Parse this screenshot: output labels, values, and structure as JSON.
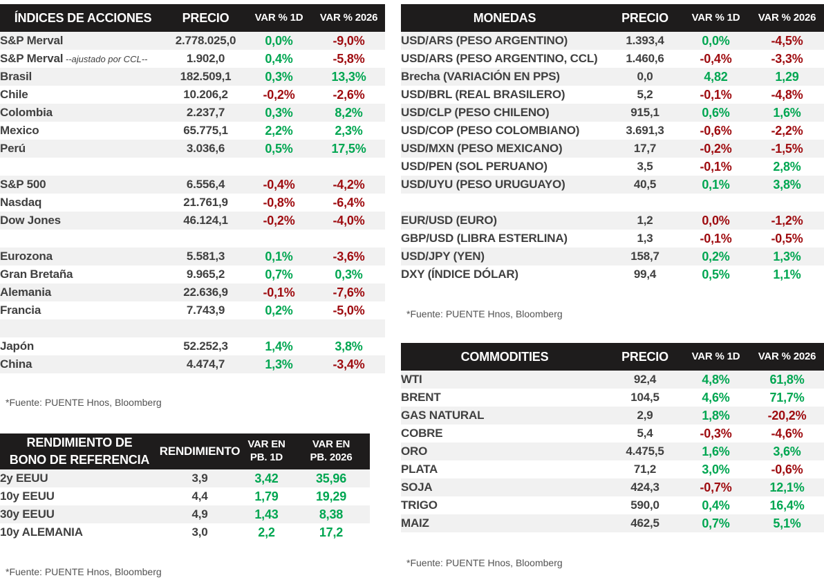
{
  "colors": {
    "positive_green": "#00A651",
    "negative_red": "#9E0B0F",
    "header_background": "#1E1C1C",
    "row_stripe": "#F1F1F1",
    "body_text": "#404040"
  },
  "chart_data": [
    {
      "type": "table",
      "title": "ÍNDICES DE ACCIONES",
      "columns": [
        "PRECIO",
        "VAR % 1D",
        "VAR % 2026"
      ],
      "rows": [
        {
          "label": "S&P Merval",
          "value": "2.778.025,0",
          "var_1d": "0,0%",
          "var_1d_color": "green",
          "var_2026": "-9,0%",
          "var_2026_color": "red"
        },
        {
          "label": "S&P Merval",
          "note": "--ajustado por CCL--",
          "value": "1.902,0",
          "var_1d": "0,4%",
          "var_1d_color": "green",
          "var_2026": "-5,8%",
          "var_2026_color": "red"
        },
        {
          "label": "Brasil",
          "value": "182.509,1",
          "var_1d": "0,3%",
          "var_1d_color": "green",
          "var_2026": "13,3%",
          "var_2026_color": "green"
        },
        {
          "label": "Chile",
          "value": "10.206,2",
          "var_1d": "-0,2%",
          "var_1d_color": "red",
          "var_2026": "-2,6%",
          "var_2026_color": "red"
        },
        {
          "label": "Colombia",
          "value": "2.237,7",
          "var_1d": "0,3%",
          "var_1d_color": "green",
          "var_2026": "8,2%",
          "var_2026_color": "green"
        },
        {
          "label": "Mexico",
          "value": "65.775,1",
          "var_1d": "2,2%",
          "var_1d_color": "green",
          "var_2026": "2,3%",
          "var_2026_color": "green"
        },
        {
          "label": "Perú",
          "value": "3.036,6",
          "var_1d": "0,5%",
          "var_1d_color": "green",
          "var_2026": "17,5%",
          "var_2026_color": "green"
        },
        {
          "empty": true
        },
        {
          "label": "S&P 500",
          "value": "6.556,4",
          "var_1d": "-0,4%",
          "var_1d_color": "red",
          "var_2026": "-4,2%",
          "var_2026_color": "red"
        },
        {
          "label": "Nasdaq",
          "value": "21.761,9",
          "var_1d": "-0,8%",
          "var_1d_color": "red",
          "var_2026": "-6,4%",
          "var_2026_color": "red"
        },
        {
          "label": "Dow Jones",
          "value": "46.124,1",
          "var_1d": "-0,2%",
          "var_1d_color": "red",
          "var_2026": "-4,0%",
          "var_2026_color": "red"
        },
        {
          "empty": true
        },
        {
          "label": "Eurozona",
          "value": "5.581,3",
          "var_1d": "0,1%",
          "var_1d_color": "green",
          "var_2026": "-3,6%",
          "var_2026_color": "red"
        },
        {
          "label": "Gran Bretaña",
          "value": "9.965,2",
          "var_1d": "0,7%",
          "var_1d_color": "green",
          "var_2026": "0,3%",
          "var_2026_color": "green"
        },
        {
          "label": "Alemania",
          "value": "22.636,9",
          "var_1d": "-0,1%",
          "var_1d_color": "red",
          "var_2026": "-7,6%",
          "var_2026_color": "red"
        },
        {
          "label": "Francia",
          "value": "7.743,9",
          "var_1d": "0,2%",
          "var_1d_color": "green",
          "var_2026": "-5,0%",
          "var_2026_color": "red"
        },
        {
          "empty": true
        },
        {
          "label": "Japón",
          "value": "52.252,3",
          "var_1d": "1,4%",
          "var_1d_color": "green",
          "var_2026": "3,8%",
          "var_2026_color": "green"
        },
        {
          "label": "China",
          "value": "4.474,7",
          "var_1d": "1,3%",
          "var_1d_color": "green",
          "var_2026": "-3,4%",
          "var_2026_color": "red"
        }
      ],
      "source": "*Fuente: PUENTE Hnos, Bloomberg"
    },
    {
      "type": "table",
      "title": "RENDIMIENTO DE\nBONO DE REFERENCIA",
      "columns": [
        "RENDIMIENTO",
        "VAR EN\nPB. 1D",
        "VAR EN\nPB. 2026"
      ],
      "rows": [
        {
          "label": "2y EEUU",
          "value": "3,9",
          "var_1d": "3,42",
          "var_1d_color": "green",
          "var_2026": "35,96",
          "var_2026_color": "green"
        },
        {
          "label": "10y EEUU",
          "value": "4,4",
          "var_1d": "1,79",
          "var_1d_color": "green",
          "var_2026": "19,29",
          "var_2026_color": "green"
        },
        {
          "label": "30y EEUU",
          "value": "4,9",
          "var_1d": "1,43",
          "var_1d_color": "green",
          "var_2026": "8,38",
          "var_2026_color": "green"
        },
        {
          "label": "10y ALEMANIA",
          "value": "3,0",
          "var_1d": "2,2",
          "var_1d_color": "green",
          "var_2026": "17,2",
          "var_2026_color": "green"
        }
      ],
      "source": "*Fuente: PUENTE Hnos, Bloomberg"
    },
    {
      "type": "table",
      "title": "MONEDAS",
      "columns": [
        "PRECIO",
        "VAR % 1D",
        "VAR % 2026"
      ],
      "rows": [
        {
          "label": "USD/ARS (PESO ARGENTINO)",
          "value": "1.393,4",
          "var_1d": "0,0%",
          "var_1d_color": "green",
          "var_2026": "-4,5%",
          "var_2026_color": "red"
        },
        {
          "label": "USD/ARS (PESO ARGENTINO, CCL)",
          "value": "1.460,6",
          "var_1d": "-0,4%",
          "var_1d_color": "red",
          "var_2026": "-3,3%",
          "var_2026_color": "red"
        },
        {
          "label": "Brecha (VARIACIÓN EN PPS)",
          "value": "0,0",
          "var_1d": "4,82",
          "var_1d_color": "green",
          "var_2026": "1,29",
          "var_2026_color": "green"
        },
        {
          "label": "USD/BRL (REAL BRASILERO)",
          "value": "5,2",
          "var_1d": "-0,1%",
          "var_1d_color": "red",
          "var_2026": "-4,8%",
          "var_2026_color": "red"
        },
        {
          "label": "USD/CLP (PESO CHILENO)",
          "value": "915,1",
          "var_1d": "0,6%",
          "var_1d_color": "green",
          "var_2026": "1,6%",
          "var_2026_color": "green"
        },
        {
          "label": "USD/COP (PESO COLOMBIANO)",
          "value": "3.691,3",
          "var_1d": "-0,6%",
          "var_1d_color": "red",
          "var_2026": "-2,2%",
          "var_2026_color": "red"
        },
        {
          "label": "USD/MXN (PESO MEXICANO)",
          "value": "17,7",
          "var_1d": "-0,2%",
          "var_1d_color": "red",
          "var_2026": "-1,5%",
          "var_2026_color": "red"
        },
        {
          "label": "USD/PEN (SOL PERUANO)",
          "value": "3,5",
          "var_1d": "-0,1%",
          "var_1d_color": "red",
          "var_2026": "2,8%",
          "var_2026_color": "green"
        },
        {
          "label": "USD/UYU (PESO URUGUAYO)",
          "value": "40,5",
          "var_1d": "0,1%",
          "var_1d_color": "green",
          "var_2026": "3,8%",
          "var_2026_color": "green"
        },
        {
          "empty": true
        },
        {
          "label": "EUR/USD (EURO)",
          "value": "1,2",
          "var_1d": "0,0%",
          "var_1d_color": "red",
          "var_2026": "-1,2%",
          "var_2026_color": "red"
        },
        {
          "label": "GBP/USD (LIBRA ESTERLINA)",
          "value": "1,3",
          "var_1d": "-0,1%",
          "var_1d_color": "red",
          "var_2026": "-0,5%",
          "var_2026_color": "red"
        },
        {
          "label": "USD/JPY (YEN)",
          "value": "158,7",
          "var_1d": "0,2%",
          "var_1d_color": "green",
          "var_2026": "1,3%",
          "var_2026_color": "green"
        },
        {
          "label": "DXY (ÍNDICE DÓLAR)",
          "value": "99,4",
          "var_1d": "0,5%",
          "var_1d_color": "green",
          "var_2026": "1,1%",
          "var_2026_color": "green"
        }
      ],
      "source": "*Fuente: PUENTE Hnos, Bloomberg"
    },
    {
      "type": "table",
      "title": "COMMODITIES",
      "columns": [
        "PRECIO",
        "VAR % 1D",
        "VAR % 2026"
      ],
      "rows": [
        {
          "label": "WTI",
          "value": "92,4",
          "var_1d": "4,8%",
          "var_1d_color": "green",
          "var_2026": "61,8%",
          "var_2026_color": "green"
        },
        {
          "label": "BRENT",
          "value": "104,5",
          "var_1d": "4,6%",
          "var_1d_color": "green",
          "var_2026": "71,7%",
          "var_2026_color": "green"
        },
        {
          "label": "GAS NATURAL",
          "value": "2,9",
          "var_1d": "1,8%",
          "var_1d_color": "green",
          "var_2026": "-20,2%",
          "var_2026_color": "red"
        },
        {
          "label": "COBRE",
          "value": "5,4",
          "var_1d": "-0,3%",
          "var_1d_color": "red",
          "var_2026": "-4,6%",
          "var_2026_color": "red"
        },
        {
          "label": "ORO",
          "value": "4.475,5",
          "var_1d": "1,6%",
          "var_1d_color": "green",
          "var_2026": "3,6%",
          "var_2026_color": "green"
        },
        {
          "label": "PLATA",
          "value": "71,2",
          "var_1d": "3,0%",
          "var_1d_color": "green",
          "var_2026": "-0,6%",
          "var_2026_color": "red"
        },
        {
          "label": "SOJA",
          "value": "424,3",
          "var_1d": "-0,7%",
          "var_1d_color": "red",
          "var_2026": "12,1%",
          "var_2026_color": "green"
        },
        {
          "label": "TRIGO",
          "value": "590,0",
          "var_1d": "0,4%",
          "var_1d_color": "green",
          "var_2026": "16,4%",
          "var_2026_color": "green"
        },
        {
          "label": "MAIZ",
          "value": "462,5",
          "var_1d": "0,7%",
          "var_1d_color": "green",
          "var_2026": "5,1%",
          "var_2026_color": "green"
        }
      ],
      "source": "*Fuente: PUENTE Hnos, Bloomberg"
    }
  ]
}
